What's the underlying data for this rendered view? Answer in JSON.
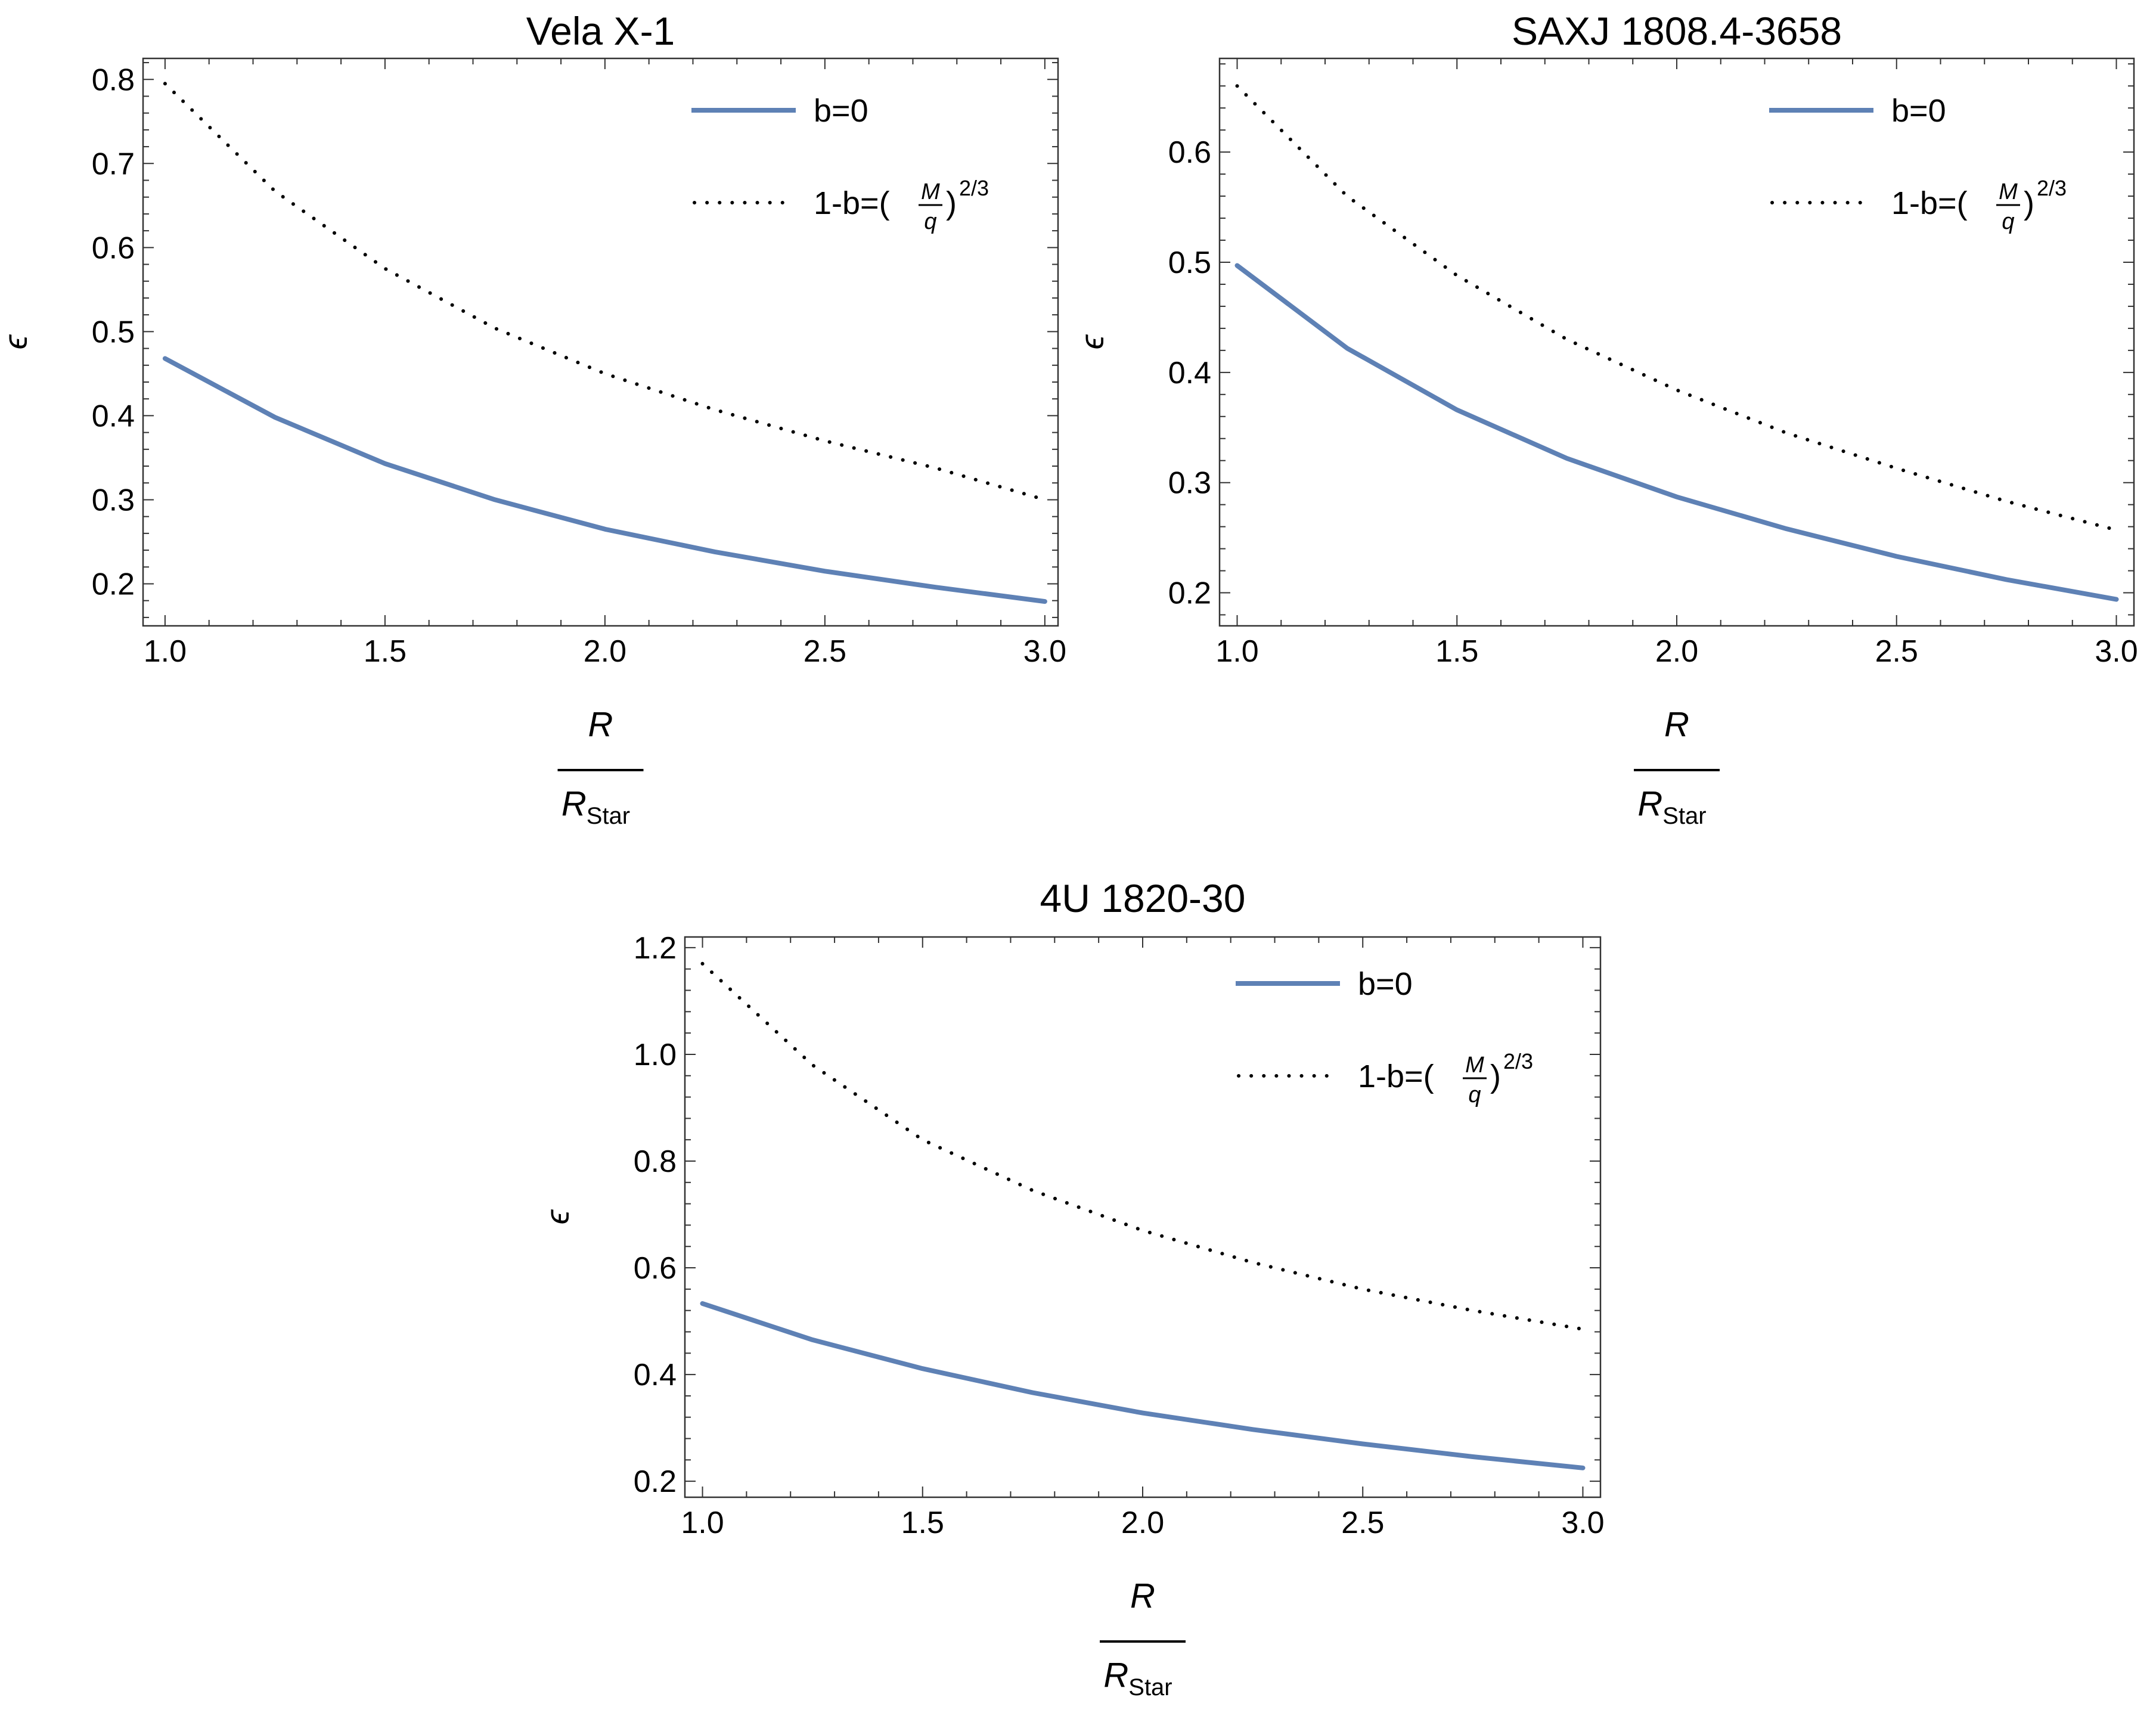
{
  "chart_data": [
    {
      "type": "line",
      "title": "Vela X-1",
      "xlabel": {
        "numerator": "R",
        "denominator": "R",
        "denominator_subscript": "Star"
      },
      "ylabel": "ϵ",
      "xlim": [
        0.95,
        3.03
      ],
      "ylim": [
        0.15,
        0.825
      ],
      "x_ticks": [
        "1.0",
        "1.5",
        "2.0",
        "2.5",
        "3.0"
      ],
      "y_ticks": [
        "0.2",
        "0.3",
        "0.4",
        "0.5",
        "0.6",
        "0.7",
        "0.8"
      ],
      "grid": false,
      "legend_position": "top-right",
      "series": [
        {
          "name": "b=0",
          "style": "solid",
          "color": "#5E81B5",
          "x": [
            1.0,
            1.25,
            1.5,
            1.75,
            2.0,
            2.25,
            2.5,
            2.75,
            3.0
          ],
          "y": [
            0.468,
            0.398,
            0.343,
            0.3,
            0.265,
            0.238,
            0.215,
            0.196,
            0.179
          ]
        },
        {
          "name": "1-b=(M/q)^2/3",
          "style": "dotted",
          "color": "#000000",
          "x": [
            1.0,
            1.25,
            1.5,
            1.75,
            2.0,
            2.25,
            2.5,
            2.75,
            3.0
          ],
          "y": [
            0.795,
            0.667,
            0.575,
            0.504,
            0.45,
            0.407,
            0.37,
            0.338,
            0.3
          ]
        }
      ]
    },
    {
      "type": "line",
      "title": "SAXJ 1808.4-3658",
      "xlabel": {
        "numerator": "R",
        "denominator": "R",
        "denominator_subscript": "Star"
      },
      "ylabel": "ϵ",
      "xlim": [
        0.96,
        3.04
      ],
      "ylim": [
        0.17,
        0.685
      ],
      "x_ticks": [
        "1.0",
        "1.5",
        "2.0",
        "2.5",
        "3.0"
      ],
      "y_ticks": [
        "0.2",
        "0.3",
        "0.4",
        "0.5",
        "0.6"
      ],
      "grid": false,
      "legend_position": "top-right",
      "series": [
        {
          "name": "b=0",
          "style": "solid",
          "color": "#5E81B5",
          "x": [
            1.0,
            1.25,
            1.5,
            1.75,
            2.0,
            2.25,
            2.5,
            2.75,
            3.0
          ],
          "y": [
            0.497,
            0.422,
            0.366,
            0.322,
            0.287,
            0.258,
            0.233,
            0.212,
            0.194
          ]
        },
        {
          "name": "1-b=(M/q)^2/3",
          "style": "dotted",
          "color": "#000000",
          "x": [
            1.0,
            1.25,
            1.5,
            1.75,
            2.0,
            2.25,
            2.5,
            2.75,
            3.0
          ],
          "y": [
            0.66,
            0.56,
            0.488,
            0.43,
            0.384,
            0.345,
            0.313,
            0.283,
            0.257
          ]
        }
      ]
    },
    {
      "type": "line",
      "title": "4U 1820-30",
      "xlabel": {
        "numerator": "R",
        "denominator": "R",
        "denominator_subscript": "Star"
      },
      "ylabel": "ϵ",
      "xlim": [
        0.96,
        3.04
      ],
      "ylim": [
        0.17,
        1.22
      ],
      "x_ticks": [
        "1.0",
        "1.5",
        "2.0",
        "2.5",
        "3.0"
      ],
      "y_ticks": [
        "0.2",
        "0.4",
        "0.6",
        "0.8",
        "1.0",
        "1.2"
      ],
      "grid": false,
      "legend_position": "top-right",
      "series": [
        {
          "name": "b=0",
          "style": "solid",
          "color": "#5E81B5",
          "x": [
            1.0,
            1.25,
            1.5,
            1.75,
            2.0,
            2.25,
            2.5,
            2.75,
            3.0
          ],
          "y": [
            0.533,
            0.465,
            0.411,
            0.366,
            0.328,
            0.297,
            0.27,
            0.246,
            0.225
          ]
        },
        {
          "name": "1-b=(M/q)^2/3",
          "style": "dotted",
          "color": "#000000",
          "x": [
            1.0,
            1.25,
            1.5,
            1.75,
            2.0,
            2.25,
            2.5,
            2.75,
            3.0
          ],
          "y": [
            1.17,
            0.98,
            0.84,
            0.745,
            0.67,
            0.61,
            0.56,
            0.52,
            0.485
          ]
        }
      ]
    }
  ],
  "legend_text": {
    "solid": "b=0",
    "dotted_prefix": "1-b=(",
    "dotted_suffix": ")",
    "frac_num": "M",
    "frac_den": "q",
    "exponent": "2/3"
  }
}
